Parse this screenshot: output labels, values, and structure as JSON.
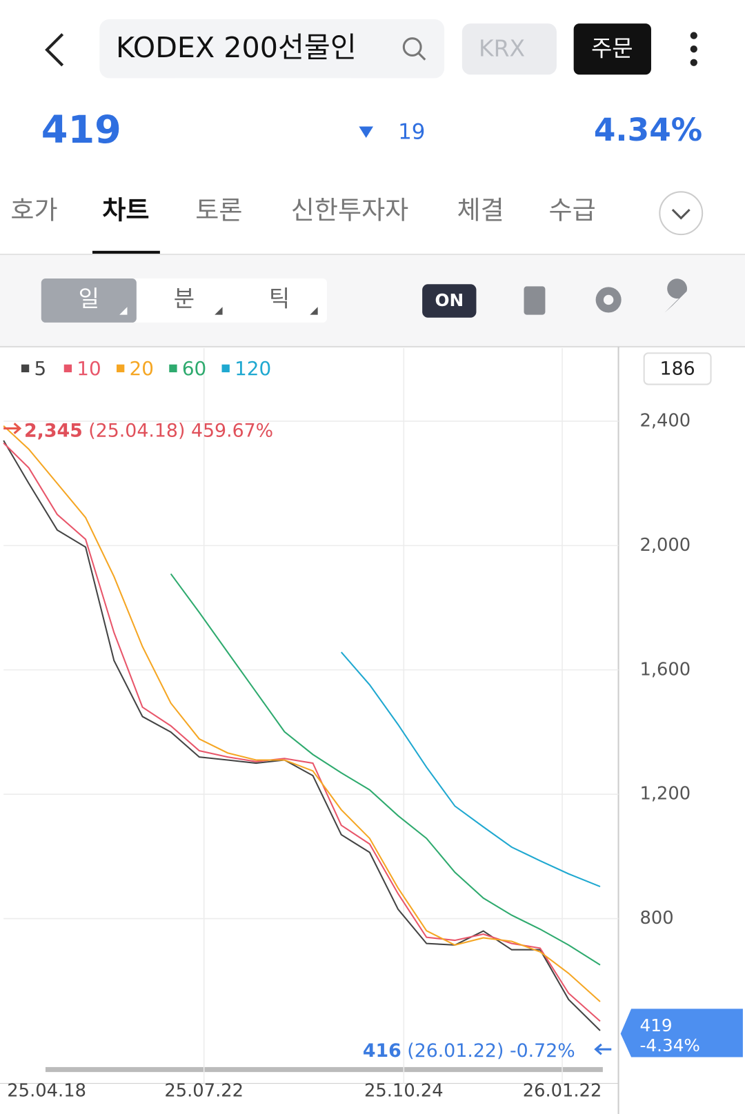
{
  "header": {
    "search": "KODEX 200선물인",
    "exchange": "KRX",
    "order": "주문"
  },
  "quote": {
    "price": "419",
    "change": "19",
    "change_rate": "4.34%"
  },
  "tabs": [
    "호가",
    "차트",
    "토론",
    "신한투자자",
    "체결",
    "수급"
  ],
  "toolbar": {
    "periods": [
      "일",
      "분",
      "틱"
    ],
    "toggle": "ON"
  },
  "chart_data": {
    "type": "line",
    "x": [
      0,
      8,
      17,
      26,
      35,
      44,
      53,
      62,
      71,
      80,
      89,
      98,
      107,
      116,
      125,
      134,
      143,
      152,
      161,
      170,
      179,
      189
    ],
    "xlim": [
      0,
      190
    ],
    "xticks": [
      {
        "value": 0,
        "label": "25.04.18"
      },
      {
        "value": 63.5,
        "label": "25.07.22"
      },
      {
        "value": 126.8,
        "label": "25.10.24"
      },
      {
        "value": 177,
        "label": "26.01.22"
      }
    ],
    "ylim": [
      327,
      2635
    ],
    "yticks": [
      {
        "value": 2400,
        "label": "2,400"
      },
      {
        "value": 2000,
        "label": "2,000"
      },
      {
        "value": 1600,
        "label": "1,600"
      },
      {
        "value": 1200,
        "label": "1,200"
      },
      {
        "value": 800,
        "label": "800"
      }
    ],
    "grid": true,
    "series": [
      {
        "name": "5",
        "color": "#444444",
        "values": [
          2338,
          2200,
          2050,
          1995,
          1630,
          1450,
          1400,
          1320,
          1310,
          1300,
          1310,
          1260,
          1070,
          1013,
          830,
          720,
          715,
          760,
          700,
          700,
          540,
          440
        ]
      },
      {
        "name": "10",
        "color": "#e8566a",
        "values": [
          2330,
          2250,
          2100,
          2020,
          1720,
          1480,
          1420,
          1340,
          1320,
          1305,
          1315,
          1300,
          1100,
          1040,
          880,
          740,
          730,
          750,
          720,
          705,
          560,
          470
        ]
      },
      {
        "name": "20",
        "color": "#f5a623",
        "values": [
          2385,
          2310,
          2200,
          2090,
          1900,
          1675,
          1493,
          1378,
          1333,
          1310,
          1310,
          1275,
          1150,
          1058,
          898,
          761,
          715,
          738,
          727,
          693,
          624,
          533
        ]
      },
      {
        "name": "60",
        "color": "#2eaa6e",
        "values": [
          null,
          null,
          null,
          null,
          null,
          null,
          1909,
          1785,
          1657,
          1529,
          1401,
          1328,
          1269,
          1214,
          1131,
          1058,
          949,
          866,
          811,
          766,
          715,
          651
        ]
      },
      {
        "name": "120",
        "color": "#1fa8d0",
        "values": [
          null,
          null,
          null,
          null,
          null,
          null,
          null,
          null,
          null,
          null,
          null,
          null,
          1657,
          1552,
          1424,
          1287,
          1162,
          1095,
          1030,
          986,
          944,
          903
        ]
      }
    ],
    "visible_count": "186",
    "max_annotation": {
      "value": "2,345",
      "date": "(25.04.18)",
      "rate": "459.67%"
    },
    "min_annotation": {
      "value": "416",
      "date": "(26.01.22)",
      "rate": "-0.72%"
    },
    "current": {
      "price": "419",
      "rate": "-4.34%"
    }
  }
}
